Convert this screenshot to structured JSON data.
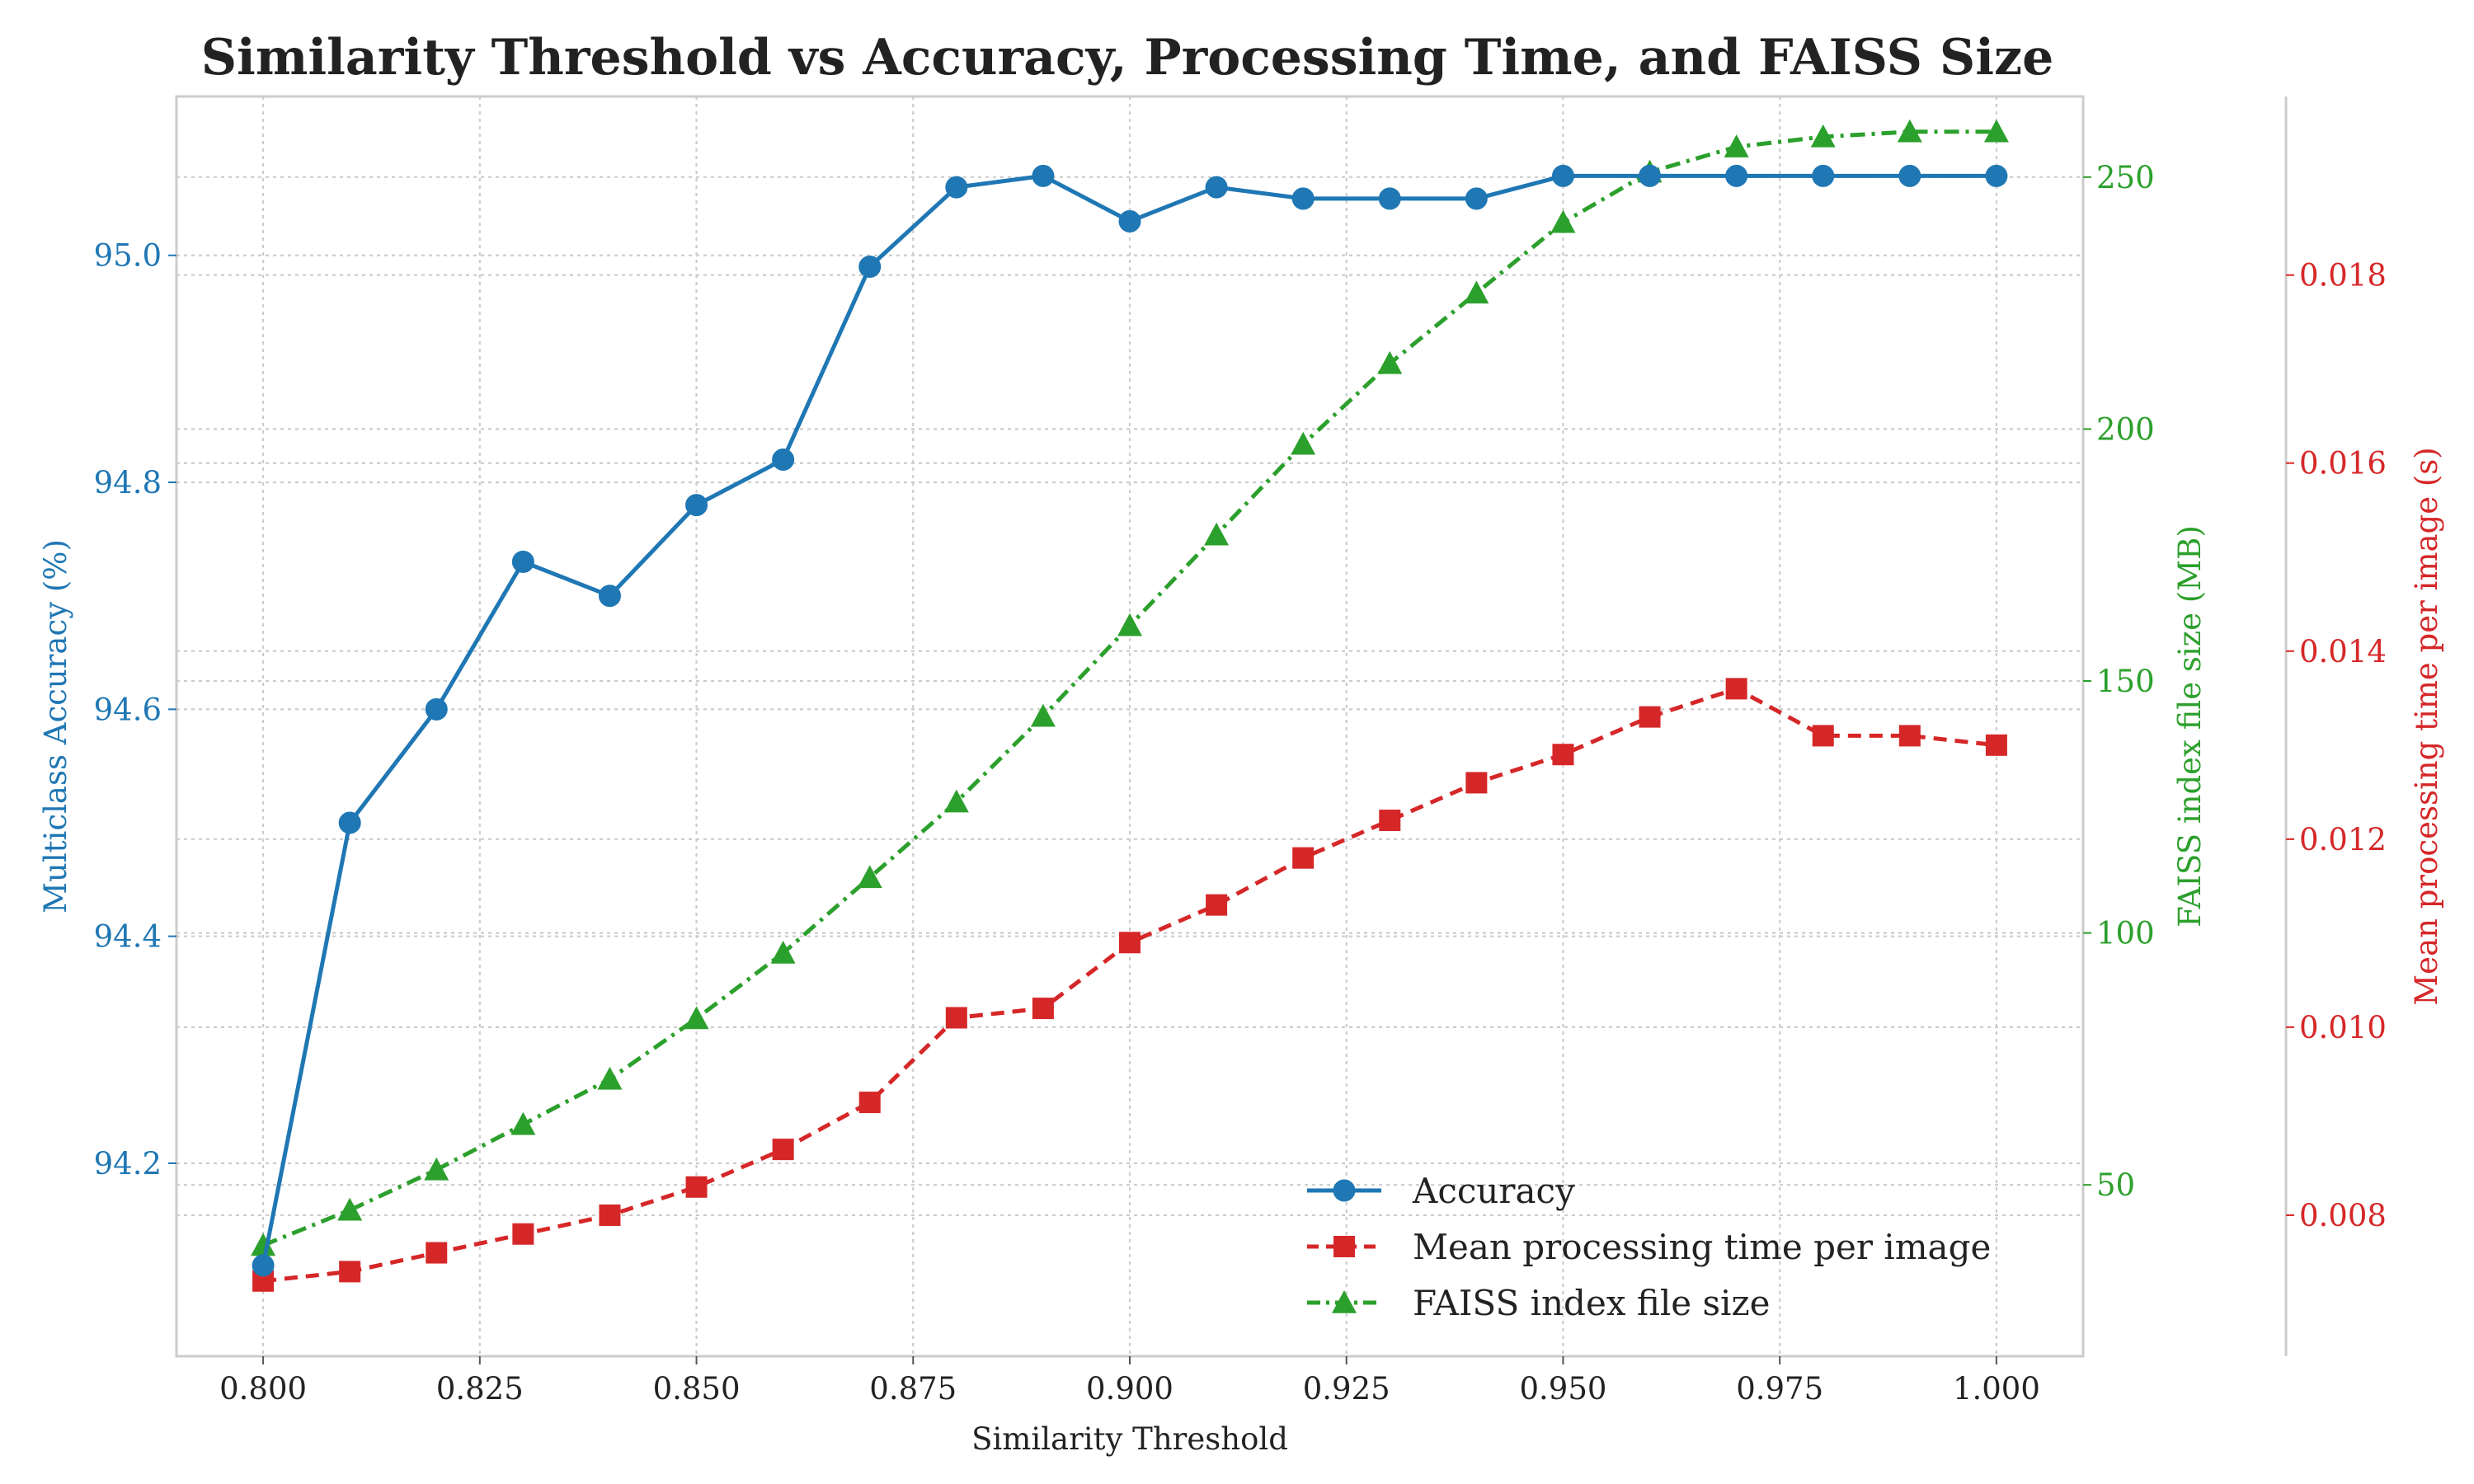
{
  "chart_data": {
    "type": "line",
    "title": "Similarity Threshold vs Accuracy, Processing Time, and FAISS Size",
    "xlabel": "Similarity Threshold",
    "xlim": [
      0.79,
      1.01
    ],
    "x": [
      0.8,
      0.81,
      0.82,
      0.83,
      0.84,
      0.85,
      0.86,
      0.87,
      0.88,
      0.89,
      0.9,
      0.91,
      0.92,
      0.93,
      0.94,
      0.95,
      0.96,
      0.97,
      0.98,
      0.99,
      1.0
    ],
    "xticks": [
      "0.800",
      "0.825",
      "0.850",
      "0.875",
      "0.900",
      "0.925",
      "0.950",
      "0.975",
      "1.000"
    ],
    "xtick_values": [
      0.8,
      0.825,
      0.85,
      0.875,
      0.9,
      0.925,
      0.95,
      0.975,
      1.0
    ],
    "grid": true,
    "legend": "lower-right",
    "axes": [
      {
        "id": "accuracy",
        "side": "left",
        "label": "Multiclass Accuracy (%)",
        "color": "#1f77b4",
        "ylim": [
          94.03,
          95.14
        ],
        "ticks": [
          "94.2",
          "94.4",
          "94.6",
          "94.8",
          "95.0"
        ],
        "tick_values": [
          94.2,
          94.4,
          94.6,
          94.8,
          95.0
        ]
      },
      {
        "id": "faiss",
        "side": "right",
        "label": "FAISS index file size (MB)",
        "color": "#2ca02c",
        "ylim": [
          16,
          266
        ],
        "ticks": [
          "50",
          "100",
          "150",
          "200",
          "250"
        ],
        "tick_values": [
          50,
          100,
          150,
          200,
          250
        ]
      },
      {
        "id": "time",
        "side": "right-outer",
        "label": "Mean processing time per image (s)",
        "color": "#d62728",
        "ylim": [
          0.0065,
          0.0199
        ],
        "ticks": [
          "0.008",
          "0.010",
          "0.012",
          "0.014",
          "0.016",
          "0.018"
        ],
        "tick_values": [
          0.008,
          0.01,
          0.012,
          0.014,
          0.016,
          0.018
        ]
      }
    ],
    "series": [
      {
        "name": "Accuracy",
        "axis": "accuracy",
        "color": "#1f77b4",
        "marker": "circle",
        "linestyle": "solid",
        "values": [
          94.11,
          94.5,
          94.6,
          94.73,
          94.7,
          94.78,
          94.82,
          94.99,
          95.06,
          95.07,
          95.03,
          95.06,
          95.05,
          95.05,
          95.05,
          95.07,
          95.07,
          95.07,
          95.07,
          95.07,
          95.07
        ]
      },
      {
        "name": "Mean processing time per image",
        "axis": "time",
        "color": "#d62728",
        "marker": "square",
        "linestyle": "dashed",
        "values": [
          0.0073,
          0.0074,
          0.0076,
          0.0078,
          0.008,
          0.0083,
          0.0087,
          0.0092,
          0.0101,
          0.0102,
          0.0109,
          0.0113,
          0.0118,
          0.0122,
          0.0126,
          0.0129,
          0.0133,
          0.0136,
          0.0131,
          0.0131,
          0.013
        ]
      },
      {
        "name": "FAISS index file size",
        "axis": "faiss",
        "color": "#2ca02c",
        "marker": "triangle",
        "linestyle": "dashdot",
        "values": [
          38,
          45,
          53,
          62,
          71,
          83,
          96,
          111,
          126,
          143,
          161,
          179,
          197,
          213,
          227,
          241,
          251,
          256,
          258,
          259,
          259
        ]
      }
    ]
  }
}
